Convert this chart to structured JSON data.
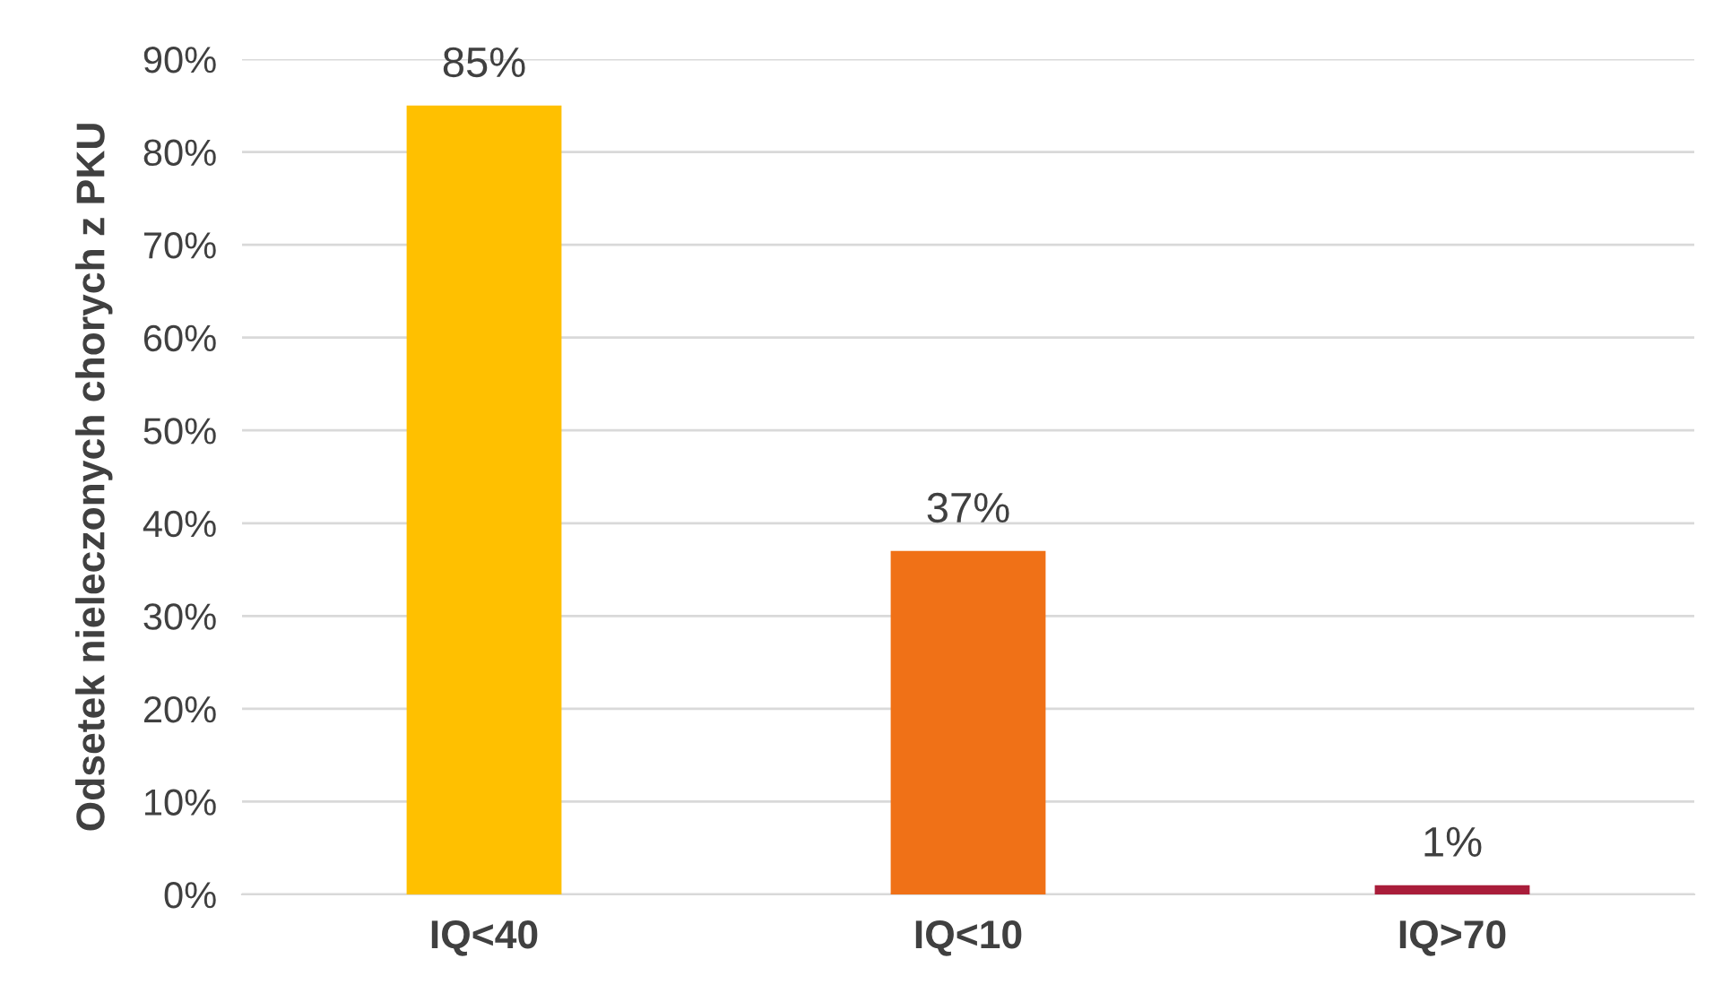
{
  "chart_data": {
    "type": "bar",
    "ylabel": "Odsetek nieleczonych chorych z PKU",
    "categories": [
      "IQ<40",
      "IQ<10",
      "IQ>70"
    ],
    "values": [
      85,
      37,
      1
    ],
    "colors": [
      "#ffc000",
      "#f07117",
      "#a91d3a"
    ],
    "value_labels": [
      "85%",
      "37%",
      "1%"
    ],
    "ylim": [
      0,
      90
    ],
    "yticks": [
      {
        "value": 0,
        "label": "0%"
      },
      {
        "value": 10,
        "label": "10%"
      },
      {
        "value": 20,
        "label": "20%"
      },
      {
        "value": 30,
        "label": "30%"
      },
      {
        "value": 40,
        "label": "40%"
      },
      {
        "value": 50,
        "label": "50%"
      },
      {
        "value": 60,
        "label": "60%"
      },
      {
        "value": 70,
        "label": "70%"
      },
      {
        "value": 80,
        "label": "80%"
      },
      {
        "value": 90,
        "label": "90%"
      }
    ],
    "grid": "y",
    "legend": false
  }
}
